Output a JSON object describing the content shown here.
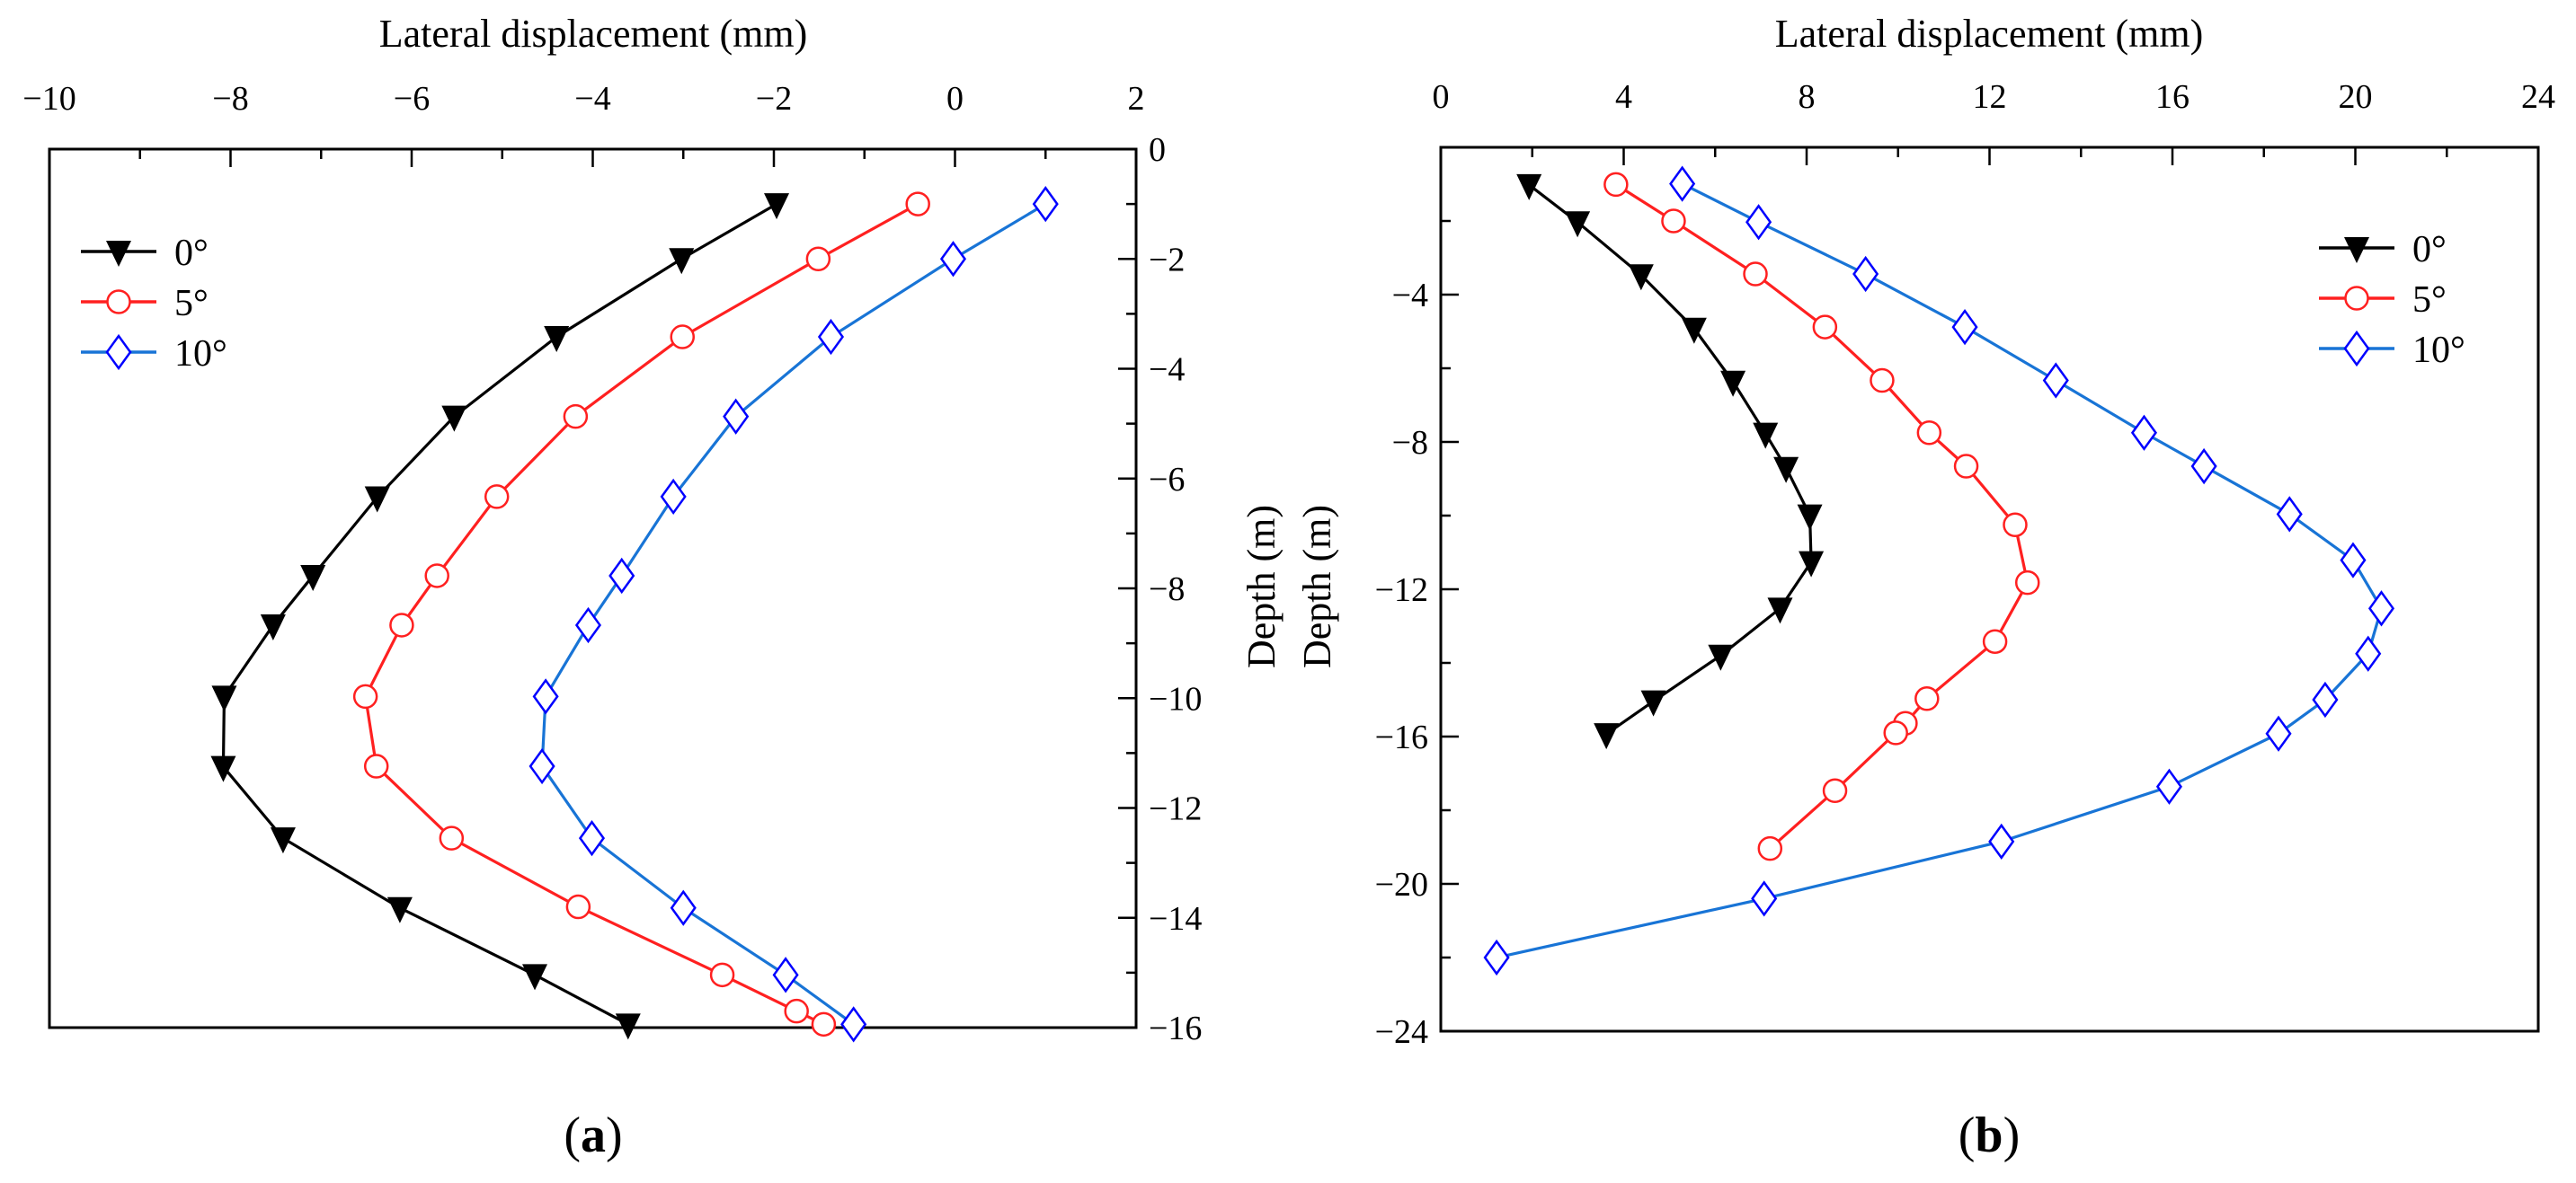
{
  "chart_data": [
    {
      "type": "line",
      "panel_label": "a",
      "xlabel": "Lateral displacement (mm)",
      "ylabel": "Depth (m)",
      "xlim": [
        -10,
        2
      ],
      "ylim": [
        -16,
        0
      ],
      "xticks": [
        -10,
        -8,
        -6,
        -4,
        -2,
        0,
        2
      ],
      "yticks": [
        0,
        -2,
        -4,
        -6,
        -8,
        -10,
        -12,
        -14,
        -16
      ],
      "x_axis_position": "top",
      "y_axis_position": "right",
      "legend_position": "top-left",
      "grid": false,
      "series": [
        {
          "name": "0°",
          "color": "#000000",
          "marker": "triangle-down",
          "x": [
            -1.97,
            -3.02,
            -4.4,
            -5.53,
            -6.38,
            -7.09,
            -7.53,
            -8.07,
            -8.08,
            -7.42,
            -6.13,
            -4.64,
            -3.61
          ],
          "y": [
            -1.0,
            -2.0,
            -3.42,
            -4.87,
            -6.34,
            -7.77,
            -8.67,
            -9.97,
            -11.25,
            -12.55,
            -13.82,
            -15.04,
            -15.94
          ]
        },
        {
          "name": "5°",
          "color": "#ff2020",
          "marker": "circle",
          "x": [
            -0.41,
            -1.51,
            -3.01,
            -4.19,
            -5.06,
            -5.72,
            -6.11,
            -6.51,
            -6.39,
            -5.56,
            -4.16,
            -2.57,
            -1.75,
            -1.45
          ],
          "y": [
            -1.0,
            -2.0,
            -3.42,
            -4.87,
            -6.33,
            -7.77,
            -8.67,
            -9.97,
            -11.24,
            -12.55,
            -13.8,
            -15.04,
            -15.7,
            -15.94
          ]
        },
        {
          "name": "10°",
          "color": "#1874d6",
          "marker_color": "#0000ff",
          "marker": "diamond",
          "x": [
            1.0,
            -0.02,
            -1.37,
            -2.42,
            -3.11,
            -3.68,
            -4.05,
            -4.52,
            -4.56,
            -4.01,
            -3.0,
            -1.87,
            -1.12
          ],
          "y": [
            -1.0,
            -2.0,
            -3.42,
            -4.87,
            -6.33,
            -7.77,
            -8.67,
            -9.97,
            -11.24,
            -12.55,
            -13.82,
            -15.04,
            -15.94
          ]
        }
      ]
    },
    {
      "type": "line",
      "panel_label": "b",
      "xlabel": "Lateral displacement (mm)",
      "ylabel": "Depth (m)",
      "xlim": [
        0,
        24
      ],
      "ylim": [
        -24,
        0
      ],
      "xticks": [
        0,
        4,
        8,
        12,
        16,
        20,
        24
      ],
      "yticks": [
        -4,
        -8,
        -12,
        -16,
        -20,
        -24
      ],
      "x_axis_position": "top",
      "y_axis_position": "left",
      "legend_position": "top-right",
      "grid": false,
      "series": [
        {
          "name": "0°",
          "color": "#000000",
          "marker": "triangle-down",
          "x": [
            1.93,
            2.99,
            4.38,
            5.54,
            6.39,
            7.1,
            7.55,
            8.07,
            8.1,
            7.42,
            6.12,
            4.65,
            3.62
          ],
          "y": [
            -1.02,
            -2.03,
            -3.47,
            -4.92,
            -6.36,
            -7.77,
            -8.7,
            -9.99,
            -11.26,
            -12.52,
            -13.8,
            -15.04,
            -15.93
          ]
        },
        {
          "name": "5°",
          "color": "#ff2020",
          "marker": "circle",
          "x": [
            3.83,
            5.09,
            6.88,
            8.4,
            9.65,
            10.68,
            11.49,
            12.56,
            12.83,
            12.12,
            10.63,
            10.16,
            9.95,
            8.62,
            7.2
          ],
          "y": [
            -1.01,
            -2.0,
            -3.44,
            -4.88,
            -6.33,
            -7.75,
            -8.66,
            -10.25,
            -11.82,
            -13.42,
            -14.97,
            -15.64,
            -15.9,
            -17.47,
            -19.04
          ]
        },
        {
          "name": "10°",
          "color": "#1874d6",
          "marker_color": "#0000ff",
          "marker": "diamond",
          "x": [
            5.28,
            6.95,
            9.29,
            11.46,
            13.45,
            15.38,
            16.69,
            18.56,
            19.95,
            20.57,
            20.28,
            19.34,
            18.32,
            15.93,
            12.26,
            7.07,
            1.22
          ],
          "y": [
            -0.99,
            -2.03,
            -3.44,
            -4.88,
            -6.33,
            -7.75,
            -8.66,
            -9.96,
            -11.21,
            -12.52,
            -13.75,
            -15.0,
            -15.92,
            -17.36,
            -18.85,
            -20.4,
            -22.0
          ]
        }
      ]
    }
  ]
}
